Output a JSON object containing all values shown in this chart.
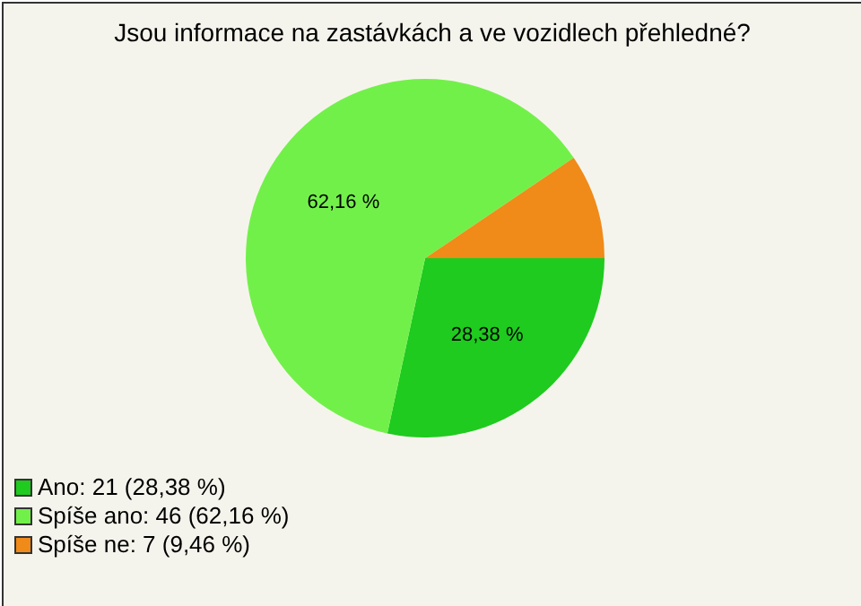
{
  "chart_data": {
    "type": "pie",
    "title": "Jsou informace na zastávkách a ve vozidlech přehledné?",
    "categories": [
      "Ano: 21 (28,38 %)",
      "Spíše ano: 46 (62,16 %)",
      "Spíše ne: 7 (9,46 %)"
    ],
    "values": [
      28.38,
      62.16,
      9.46
    ],
    "colors": [
      "#1ecb1e",
      "#72f04a",
      "#f08a18"
    ],
    "value_labels": [
      "28,38 %",
      "62,16 %",
      null
    ],
    "legend": "bottom left"
  }
}
